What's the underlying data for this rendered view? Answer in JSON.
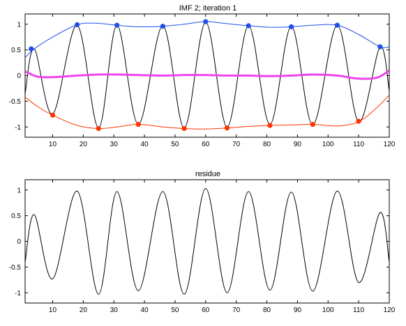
{
  "chart_data": [
    {
      "type": "line",
      "title": "IMF 2;  iteration 1",
      "xlabel": "",
      "ylabel": "",
      "xlim": [
        1,
        120
      ],
      "ylim": [
        -1.2,
        1.2
      ],
      "xticks": [
        10,
        20,
        30,
        40,
        50,
        60,
        70,
        80,
        90,
        100,
        110,
        120
      ],
      "yticks": [
        1,
        0.5,
        0,
        -0.5,
        -1
      ],
      "grid": false,
      "legend": "none",
      "series": [
        {
          "role": "signal",
          "color": "#000000",
          "x": [
            1,
            4,
            10,
            18,
            25,
            31,
            38,
            46,
            53,
            60,
            67,
            74,
            81,
            88,
            95,
            103,
            110,
            117,
            120
          ],
          "y": [
            -0.35,
            0.52,
            -0.75,
            0.98,
            -1.02,
            0.98,
            -0.95,
            0.97,
            -1.02,
            1.04,
            -1.0,
            0.97,
            -0.95,
            0.96,
            -0.96,
            0.98,
            -0.9,
            0.56,
            -0.3
          ]
        },
        {
          "role": "upper-envelope",
          "color": "#1f4fe8",
          "x": [
            1,
            4,
            10,
            18,
            24,
            31,
            38,
            46,
            53,
            60,
            67,
            74,
            81,
            88,
            95,
            103,
            110,
            117,
            120
          ],
          "y": [
            0.35,
            0.52,
            0.75,
            0.99,
            1.02,
            0.98,
            0.95,
            0.96,
            1.0,
            1.05,
            1.01,
            0.97,
            0.94,
            0.95,
            0.98,
            0.98,
            0.8,
            0.56,
            0.56
          ]
        },
        {
          "role": "lower-envelope",
          "color": "#ff3300",
          "x": [
            1,
            5,
            10,
            18,
            25,
            31,
            38,
            46,
            53,
            60,
            67,
            74,
            81,
            88,
            95,
            103,
            110,
            116,
            120
          ],
          "y": [
            -0.42,
            -0.6,
            -0.77,
            -0.97,
            -1.03,
            -1.0,
            -0.95,
            -1.0,
            -1.03,
            -1.04,
            -1.02,
            -0.99,
            -0.97,
            -0.96,
            -0.95,
            -0.98,
            -0.9,
            -0.62,
            -0.38
          ]
        },
        {
          "role": "mean-envelope",
          "color": "#ee44ee",
          "x": [
            1,
            5,
            10,
            18,
            25,
            31,
            38,
            46,
            53,
            60,
            67,
            74,
            81,
            88,
            95,
            103,
            110,
            116,
            120
          ],
          "y": [
            0.08,
            -0.02,
            -0.03,
            0.0,
            0.02,
            0.02,
            0.01,
            0.0,
            0.01,
            0.01,
            0.0,
            0.0,
            -0.01,
            0.0,
            0.02,
            0.0,
            -0.06,
            -0.04,
            0.1
          ]
        }
      ],
      "markers": [
        {
          "role": "maxima",
          "color": "#1f4fe8",
          "x": [
            3,
            18,
            31,
            46,
            60,
            74,
            88,
            103,
            117
          ],
          "y": [
            0.52,
            0.99,
            0.98,
            0.96,
            1.05,
            0.97,
            0.95,
            0.98,
            0.56
          ]
        },
        {
          "role": "minima",
          "color": "#ff3300",
          "x": [
            10,
            25,
            38,
            53,
            67,
            81,
            95,
            110
          ],
          "y": [
            -0.77,
            -1.03,
            -0.95,
            -1.03,
            -1.02,
            -0.97,
            -0.95,
            -0.89
          ]
        }
      ]
    },
    {
      "type": "line",
      "title": "residue",
      "xlabel": "",
      "ylabel": "",
      "xlim": [
        1,
        120
      ],
      "ylim": [
        -1.2,
        1.2
      ],
      "xticks": [
        10,
        20,
        30,
        40,
        50,
        60,
        70,
        80,
        90,
        100,
        110,
        120
      ],
      "yticks": [
        1,
        0.5,
        0,
        -0.5,
        -1
      ],
      "grid": false,
      "legend": "none",
      "series": [
        {
          "role": "residue",
          "color": "#000000",
          "x": [
            1,
            4,
            10,
            18,
            25,
            31,
            38,
            46,
            53,
            60,
            67,
            74,
            81,
            88,
            95,
            103,
            110,
            117,
            120
          ],
          "y": [
            -0.4,
            0.52,
            -0.73,
            0.98,
            -1.03,
            0.97,
            -0.96,
            0.97,
            -1.03,
            1.03,
            -1.0,
            0.97,
            -0.95,
            0.96,
            -0.97,
            0.98,
            -0.8,
            0.56,
            -0.4
          ]
        }
      ],
      "markers": []
    }
  ]
}
